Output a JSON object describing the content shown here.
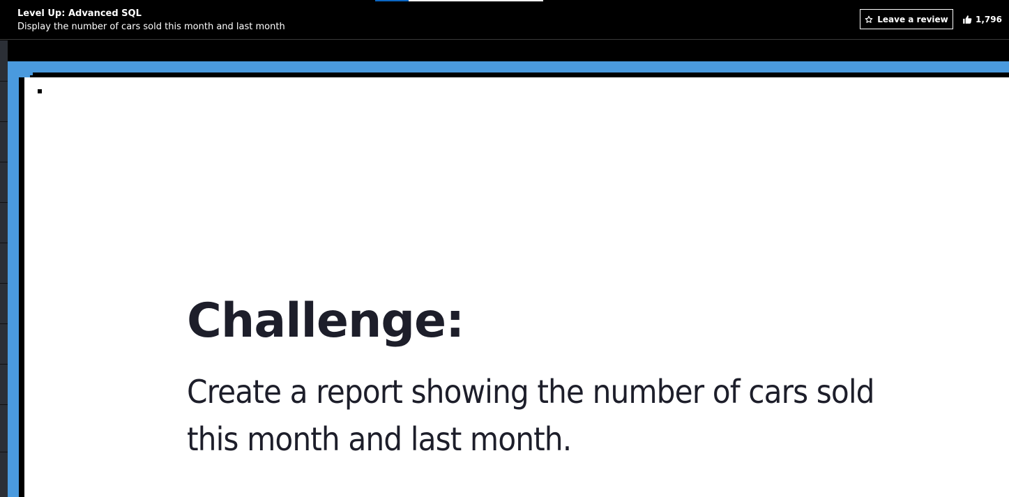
{
  "header": {
    "course_title": "Level Up: Advanced SQL",
    "video_title": "Display the number of cars sold this month and last month",
    "review_label": "Leave a review",
    "review_icon": "star-outline-icon",
    "like_icon": "thumbs-up-icon",
    "like_count": "1,796",
    "progress_fraction": 0.2
  },
  "slide": {
    "heading": "Challenge:",
    "body": "Create a report showing the number of cars sold this month and last month."
  },
  "colors": {
    "header_background": "#000000",
    "video_border": "#4a9ade",
    "slide_background": "#ffffff",
    "slide_text": "#1d1e2a",
    "progress_fill": "#0a66c2"
  }
}
